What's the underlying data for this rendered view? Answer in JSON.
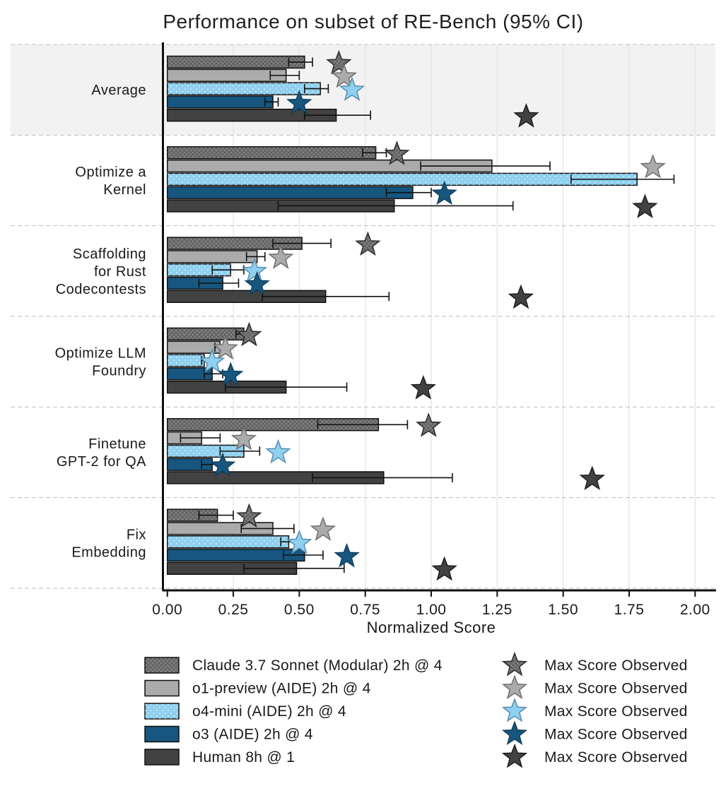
{
  "title": "Performance on subset of RE-Bench (95% CI)",
  "chart_data": {
    "type": "bar",
    "orientation": "horizontal",
    "title": "Performance on subset of RE-Bench (95% CI)",
    "xlabel": "Normalized Score",
    "xlim": [
      0,
      2.0
    ],
    "x_ticks": [
      "0.00",
      "0.25",
      "0.50",
      "0.75",
      "1.00",
      "1.25",
      "1.50",
      "1.75",
      "2.00"
    ],
    "x_tick_values": [
      0,
      0.25,
      0.5,
      0.75,
      1.0,
      1.25,
      1.5,
      1.75,
      2.0
    ],
    "grid": true,
    "legend_position": "bottom",
    "highlight_category": "Average",
    "categories": [
      "Average",
      "Optimize a Kernel",
      "Scaffolding for Rust Codecontests",
      "Optimize LLM Foundry",
      "Finetune GPT-2 for QA",
      "Fix Embedding"
    ],
    "category_label_lines": [
      [
        "Average"
      ],
      [
        "Optimize a",
        "Kernel"
      ],
      [
        "Scaffolding",
        "for Rust",
        "Codecontests"
      ],
      [
        "Optimize LLM",
        "Foundry"
      ],
      [
        "Finetune",
        "GPT-2 for QA"
      ],
      [
        "Fix",
        "Embedding"
      ]
    ],
    "max_marker_legend_label": "Max Score Observed",
    "series": [
      {
        "name": "Claude 3.7 Sonnet (Modular) 2h @ 4",
        "color": "#7f7f7f",
        "edge_color": "#2f2f2f",
        "hatch": "cross",
        "values": [
          0.52,
          0.79,
          0.51,
          0.29,
          0.8,
          0.19
        ],
        "ci_low": [
          0.46,
          0.74,
          0.4,
          0.26,
          0.57,
          0.12
        ],
        "ci_high": [
          0.55,
          0.83,
          0.62,
          0.3,
          0.91,
          0.25
        ],
        "max_scores": [
          0.65,
          0.87,
          0.76,
          0.31,
          0.99,
          0.31
        ]
      },
      {
        "name": "o1-preview (AIDE) 2h @ 4",
        "color": "#ababab",
        "edge_color": "#6f6f6f",
        "hatch": null,
        "values": [
          0.45,
          1.23,
          0.34,
          0.2,
          0.13,
          0.4
        ],
        "ci_low": [
          0.39,
          0.96,
          0.3,
          0.18,
          0.05,
          0.28
        ],
        "ci_high": [
          0.5,
          1.45,
          0.37,
          0.22,
          0.2,
          0.48
        ],
        "max_scores": [
          0.67,
          1.84,
          0.43,
          0.22,
          0.29,
          0.59
        ]
      },
      {
        "name": "o4-mini (AIDE) 2h @ 4",
        "color": "#8fd0ee",
        "edge_color": "#5a8db0",
        "hatch": "dots",
        "values": [
          0.58,
          1.78,
          0.24,
          0.14,
          0.29,
          0.46
        ],
        "ci_low": [
          0.52,
          1.53,
          0.17,
          0.13,
          0.2,
          0.43
        ],
        "ci_high": [
          0.61,
          1.92,
          0.29,
          0.16,
          0.35,
          0.49
        ],
        "max_scores": [
          0.7,
          null,
          0.33,
          0.17,
          0.42,
          0.5
        ]
      },
      {
        "name": "o3 (AIDE) 2h @ 4",
        "color": "#16567f",
        "edge_color": "#11405f",
        "hatch": null,
        "values": [
          0.4,
          0.93,
          0.21,
          0.17,
          0.17,
          0.52
        ],
        "ci_low": [
          0.37,
          0.83,
          0.12,
          0.14,
          0.13,
          0.44
        ],
        "ci_high": [
          0.42,
          1.0,
          0.27,
          0.21,
          0.2,
          0.59
        ],
        "max_scores": [
          0.5,
          1.05,
          0.34,
          0.24,
          0.21,
          0.68
        ]
      },
      {
        "name": "Human 8h @ 1",
        "color": "#424242",
        "edge_color": "#1c1c1c",
        "hatch": null,
        "values": [
          0.64,
          0.86,
          0.6,
          0.45,
          0.82,
          0.49
        ],
        "ci_low": [
          0.52,
          0.42,
          0.36,
          0.22,
          0.55,
          0.29
        ],
        "ci_high": [
          0.77,
          1.31,
          0.84,
          0.68,
          1.08,
          0.67
        ],
        "max_scores": [
          1.36,
          1.81,
          1.34,
          0.97,
          1.61,
          1.05
        ]
      }
    ]
  },
  "colors": {
    "background": "#ffffff",
    "highlight_band": "#f2f2f2",
    "gridline": "#e5e5e5",
    "separator": "#bdbdbd",
    "spine": "#111111",
    "bar_edge": "#111111",
    "error_bar": "#111111"
  }
}
